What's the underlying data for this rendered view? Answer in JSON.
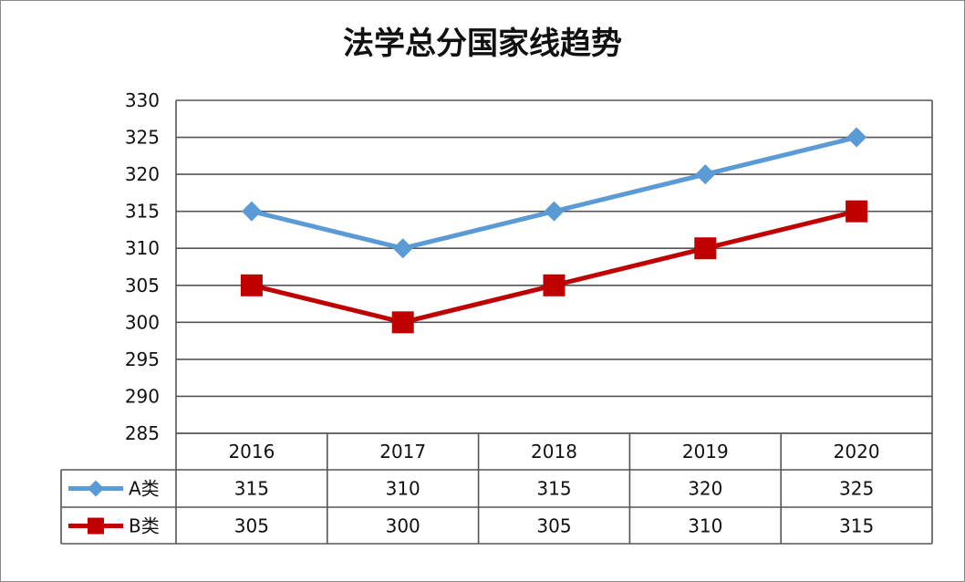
{
  "chart_data": {
    "type": "line",
    "title": "法学总分国家线趋势",
    "categories": [
      "2016",
      "2017",
      "2018",
      "2019",
      "2020"
    ],
    "ylim": [
      285,
      330
    ],
    "ytick_step": 5,
    "grid": true,
    "legend": "data-table-left",
    "series": [
      {
        "name": "A类",
        "values": [
          315,
          310,
          315,
          320,
          325
        ],
        "color": "#5B9BD5",
        "marker": "diamond"
      },
      {
        "name": "B类",
        "values": [
          305,
          300,
          305,
          310,
          315
        ],
        "color": "#C00000",
        "marker": "square"
      }
    ]
  }
}
